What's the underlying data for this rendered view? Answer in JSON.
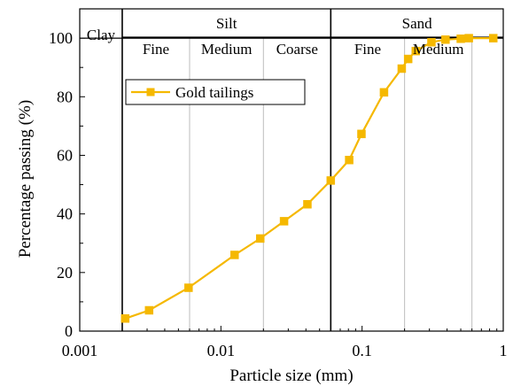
{
  "chart_data": {
    "type": "line",
    "xscale": "log",
    "xlim": [
      0.001,
      1
    ],
    "ylim": [
      0,
      110
    ],
    "xlabel": "Particle size (mm)",
    "ylabel": "Percentage passing (%)",
    "xticks": [
      {
        "value": 0.001,
        "label": "0.001"
      },
      {
        "value": 0.01,
        "label": "0.01"
      },
      {
        "value": 0.1,
        "label": "0.1"
      },
      {
        "value": 1,
        "label": "1"
      }
    ],
    "yticks": [
      {
        "value": 0,
        "label": "0"
      },
      {
        "value": 20,
        "label": "20"
      },
      {
        "value": 40,
        "label": "40"
      },
      {
        "value": 60,
        "label": "60"
      },
      {
        "value": 80,
        "label": "80"
      },
      {
        "value": 100,
        "label": "100"
      }
    ],
    "legend": "upper-left",
    "series": [
      {
        "name": "Gold tailings",
        "color": "#f5b800",
        "marker": "square",
        "x": [
          0.0021,
          0.0031,
          0.0059,
          0.0125,
          0.019,
          0.028,
          0.041,
          0.06,
          0.081,
          0.099,
          0.143,
          0.191,
          0.212,
          0.24,
          0.31,
          0.39,
          0.5,
          0.57,
          0.85
        ],
        "y": [
          4.3,
          7.1,
          14.8,
          26,
          31.6,
          37.5,
          43.3,
          51.4,
          58.4,
          67.3,
          81.5,
          89.6,
          92.9,
          95.6,
          98.6,
          99.5,
          99.8,
          100,
          100
        ]
      }
    ],
    "classification": {
      "boundaries": [
        0.002,
        0.06
      ],
      "sub_boundaries": [
        0.006,
        0.02,
        0.2,
        0.6
      ],
      "top_row": [
        {
          "label": "Clay",
          "from": 0.001,
          "to": 0.002
        },
        {
          "label": "Silt",
          "from": 0.002,
          "to": 0.06
        },
        {
          "label": "Sand",
          "from": 0.06,
          "to": 1
        }
      ],
      "sub_row": [
        {
          "label": "Fine",
          "from": 0.002,
          "to": 0.006
        },
        {
          "label": "Medium",
          "from": 0.006,
          "to": 0.02
        },
        {
          "label": "Coarse",
          "from": 0.02,
          "to": 0.06
        },
        {
          "label": "Fine",
          "from": 0.06,
          "to": 0.2
        },
        {
          "label": "Medium",
          "from": 0.2,
          "to": 0.6
        }
      ]
    }
  }
}
